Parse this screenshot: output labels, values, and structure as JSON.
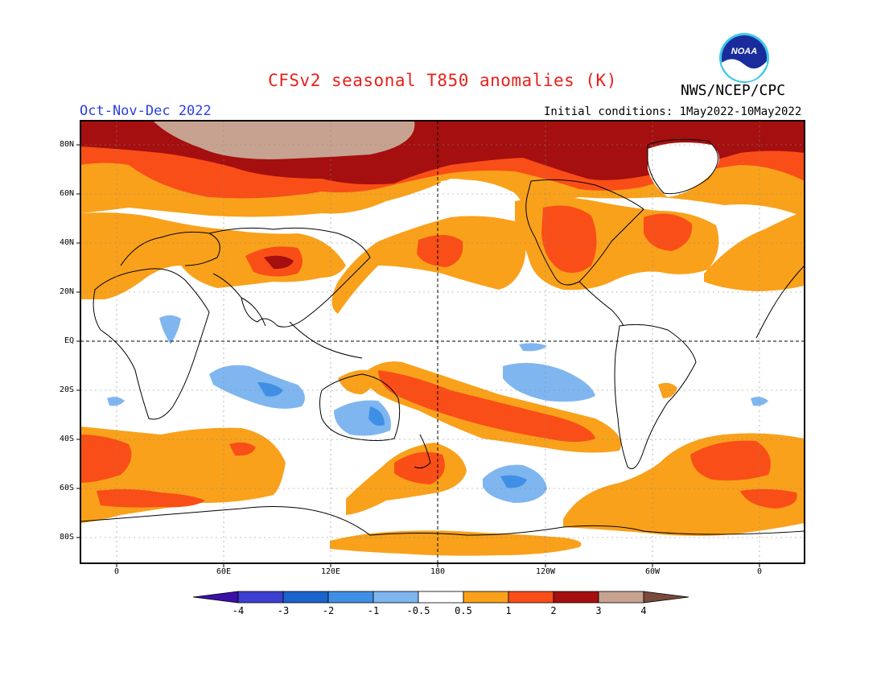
{
  "header": {
    "title": "CFSv2 seasonal T850 anomalies (K)",
    "agency": "NWS/NCEP/CPC",
    "season": "Oct-Nov-Dec 2022",
    "initial_conditions": "Initial conditions: 1May2022-10May2022",
    "logo_text": "NOAA"
  },
  "map": {
    "lat_labels": [
      "80N",
      "60N",
      "40N",
      "20N",
      "EQ",
      "20S",
      "40S",
      "60S",
      "80S"
    ],
    "lon_labels": [
      "0",
      "60E",
      "120E",
      "180",
      "120W",
      "60W",
      "0"
    ]
  },
  "colorbar": {
    "labels": [
      "-4",
      "-3",
      "-2",
      "-1",
      "-0.5",
      "0.5",
      "1",
      "2",
      "3",
      "4"
    ],
    "colors": [
      "#3a10a8",
      "#3d3fd0",
      "#1a64cc",
      "#3f8fe6",
      "#7fb6f0",
      "#ffffff",
      "#f9a11b",
      "#f94e17",
      "#a50f0f",
      "#c8a290",
      "#7a4a3c"
    ]
  }
}
